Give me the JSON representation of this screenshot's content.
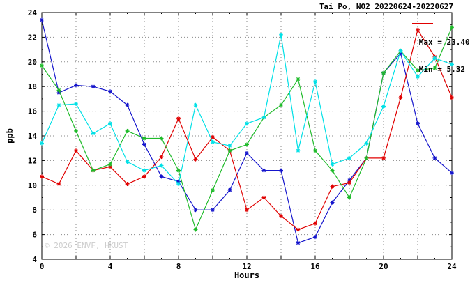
{
  "header": {
    "title": "Tai Po, NO2 20220624-20220627"
  },
  "legend": {
    "max_label": "Max = ",
    "max_value": "23.40",
    "min_label": "Min = ",
    "min_value": "5.32",
    "sample_color": "#e00000"
  },
  "watermark": "© 2026 ENVF, HKUST",
  "chart_data": {
    "type": "line",
    "title": "Tai Po, NO2 20220624-20220627",
    "xlabel": "Hours",
    "ylabel": "ppb",
    "xlim": [
      0,
      24
    ],
    "ylim": [
      4,
      24
    ],
    "x_ticks": [
      0,
      4,
      8,
      12,
      16,
      20,
      24
    ],
    "y_ticks": [
      4,
      6,
      8,
      10,
      12,
      14,
      16,
      18,
      20,
      22,
      24
    ],
    "grid": true,
    "legend_position": "top-right",
    "stats": {
      "max": 23.4,
      "min": 5.32
    },
    "x": [
      0,
      1,
      2,
      3,
      4,
      5,
      6,
      7,
      8,
      9,
      10,
      11,
      12,
      13,
      14,
      15,
      16,
      17,
      18,
      19,
      20,
      21,
      22,
      23,
      24
    ],
    "series": [
      {
        "name": "blue",
        "color": "#1515cc",
        "values": [
          23.4,
          17.5,
          18.1,
          18.0,
          17.6,
          16.5,
          13.3,
          10.7,
          10.3,
          8.0,
          8.0,
          9.6,
          12.6,
          11.2,
          11.2,
          5.32,
          5.8,
          8.6,
          10.4,
          12.2,
          19.1,
          20.7,
          15.0,
          12.2,
          11.0
        ]
      },
      {
        "name": "red",
        "color": "#e00000",
        "values": [
          10.7,
          10.1,
          12.8,
          11.2,
          11.5,
          10.1,
          10.7,
          12.3,
          15.4,
          12.1,
          13.9,
          12.8,
          8.0,
          9.0,
          7.5,
          6.4,
          6.9,
          9.9,
          10.2,
          12.2,
          12.2,
          17.1,
          22.6,
          20.4,
          17.1
        ]
      },
      {
        "name": "green",
        "color": "#1fbb2a",
        "values": [
          19.7,
          17.7,
          14.4,
          11.2,
          11.7,
          14.4,
          13.8,
          13.8,
          11.2,
          6.4,
          9.6,
          12.8,
          13.3,
          15.5,
          16.5,
          18.6,
          12.8,
          11.2,
          9.0,
          12.2,
          19.1,
          20.9,
          19.3,
          19.5,
          22.8
        ]
      },
      {
        "name": "cyan",
        "color": "#00e0e6",
        "values": [
          13.4,
          16.5,
          16.6,
          14.2,
          15.0,
          11.9,
          11.2,
          11.6,
          10.1,
          16.5,
          13.5,
          13.2,
          15.0,
          15.5,
          22.2,
          12.8,
          18.4,
          11.7,
          12.2,
          13.4,
          16.4,
          20.9,
          18.8,
          20.3,
          19.8
        ]
      }
    ]
  }
}
